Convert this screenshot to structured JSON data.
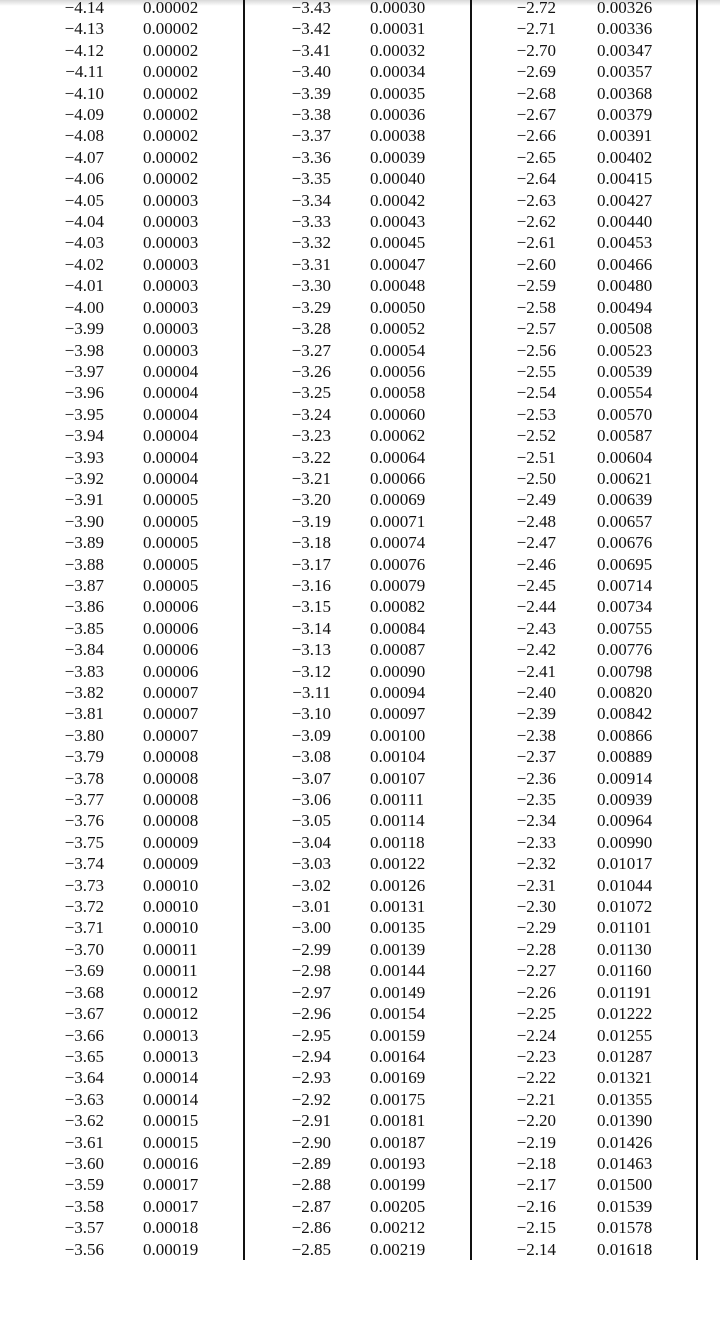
{
  "table": {
    "columns": [
      {
        "z": [
          "−4.14",
          "−4.13",
          "−4.12",
          "−4.11",
          "−4.10",
          "−4.09",
          "−4.08",
          "−4.07",
          "−4.06",
          "−4.05",
          "−4.04",
          "−4.03",
          "−4.02",
          "−4.01",
          "−4.00",
          "−3.99",
          "−3.98",
          "−3.97",
          "−3.96",
          "−3.95",
          "−3.94",
          "−3.93",
          "−3.92",
          "−3.91",
          "−3.90",
          "−3.89",
          "−3.88",
          "−3.87",
          "−3.86",
          "−3.85",
          "−3.84",
          "−3.83",
          "−3.82",
          "−3.81",
          "−3.80",
          "−3.79",
          "−3.78",
          "−3.77",
          "−3.76",
          "−3.75",
          "−3.74",
          "−3.73",
          "−3.72",
          "−3.71",
          "−3.70",
          "−3.69",
          "−3.68",
          "−3.67",
          "−3.66",
          "−3.65",
          "−3.64",
          "−3.63",
          "−3.62",
          "−3.61",
          "−3.60",
          "−3.59",
          "−3.58",
          "−3.57",
          "−3.56"
        ],
        "p": [
          "0.00002",
          "0.00002",
          "0.00002",
          "0.00002",
          "0.00002",
          "0.00002",
          "0.00002",
          "0.00002",
          "0.00002",
          "0.00003",
          "0.00003",
          "0.00003",
          "0.00003",
          "0.00003",
          "0.00003",
          "0.00003",
          "0.00003",
          "0.00004",
          "0.00004",
          "0.00004",
          "0.00004",
          "0.00004",
          "0.00004",
          "0.00005",
          "0.00005",
          "0.00005",
          "0.00005",
          "0.00005",
          "0.00006",
          "0.00006",
          "0.00006",
          "0.00006",
          "0.00007",
          "0.00007",
          "0.00007",
          "0.00008",
          "0.00008",
          "0.00008",
          "0.00008",
          "0.00009",
          "0.00009",
          "0.00010",
          "0.00010",
          "0.00010",
          "0.00011",
          "0.00011",
          "0.00012",
          "0.00012",
          "0.00013",
          "0.00013",
          "0.00014",
          "0.00014",
          "0.00015",
          "0.00015",
          "0.00016",
          "0.00017",
          "0.00017",
          "0.00018",
          "0.00019"
        ]
      },
      {
        "z": [
          "−3.43",
          "−3.42",
          "−3.41",
          "−3.40",
          "−3.39",
          "−3.38",
          "−3.37",
          "−3.36",
          "−3.35",
          "−3.34",
          "−3.33",
          "−3.32",
          "−3.31",
          "−3.30",
          "−3.29",
          "−3.28",
          "−3.27",
          "−3.26",
          "−3.25",
          "−3.24",
          "−3.23",
          "−3.22",
          "−3.21",
          "−3.20",
          "−3.19",
          "−3.18",
          "−3.17",
          "−3.16",
          "−3.15",
          "−3.14",
          "−3.13",
          "−3.12",
          "−3.11",
          "−3.10",
          "−3.09",
          "−3.08",
          "−3.07",
          "−3.06",
          "−3.05",
          "−3.04",
          "−3.03",
          "−3.02",
          "−3.01",
          "−3.00",
          "−2.99",
          "−2.98",
          "−2.97",
          "−2.96",
          "−2.95",
          "−2.94",
          "−2.93",
          "−2.92",
          "−2.91",
          "−2.90",
          "−2.89",
          "−2.88",
          "−2.87",
          "−2.86",
          "−2.85"
        ],
        "p": [
          "0.00030",
          "0.00031",
          "0.00032",
          "0.00034",
          "0.00035",
          "0.00036",
          "0.00038",
          "0.00039",
          "0.00040",
          "0.00042",
          "0.00043",
          "0.00045",
          "0.00047",
          "0.00048",
          "0.00050",
          "0.00052",
          "0.00054",
          "0.00056",
          "0.00058",
          "0.00060",
          "0.00062",
          "0.00064",
          "0.00066",
          "0.00069",
          "0.00071",
          "0.00074",
          "0.00076",
          "0.00079",
          "0.00082",
          "0.00084",
          "0.00087",
          "0.00090",
          "0.00094",
          "0.00097",
          "0.00100",
          "0.00104",
          "0.00107",
          "0.00111",
          "0.00114",
          "0.00118",
          "0.00122",
          "0.00126",
          "0.00131",
          "0.00135",
          "0.00139",
          "0.00144",
          "0.00149",
          "0.00154",
          "0.00159",
          "0.00164",
          "0.00169",
          "0.00175",
          "0.00181",
          "0.00187",
          "0.00193",
          "0.00199",
          "0.00205",
          "0.00212",
          "0.00219"
        ]
      },
      {
        "z": [
          "−2.72",
          "−2.71",
          "−2.70",
          "−2.69",
          "−2.68",
          "−2.67",
          "−2.66",
          "−2.65",
          "−2.64",
          "−2.63",
          "−2.62",
          "−2.61",
          "−2.60",
          "−2.59",
          "−2.58",
          "−2.57",
          "−2.56",
          "−2.55",
          "−2.54",
          "−2.53",
          "−2.52",
          "−2.51",
          "−2.50",
          "−2.49",
          "−2.48",
          "−2.47",
          "−2.46",
          "−2.45",
          "−2.44",
          "−2.43",
          "−2.42",
          "−2.41",
          "−2.40",
          "−2.39",
          "−2.38",
          "−2.37",
          "−2.36",
          "−2.35",
          "−2.34",
          "−2.33",
          "−2.32",
          "−2.31",
          "−2.30",
          "−2.29",
          "−2.28",
          "−2.27",
          "−2.26",
          "−2.25",
          "−2.24",
          "−2.23",
          "−2.22",
          "−2.21",
          "−2.20",
          "−2.19",
          "−2.18",
          "−2.17",
          "−2.16",
          "−2.15",
          "−2.14"
        ],
        "p": [
          "0.00326",
          "0.00336",
          "0.00347",
          "0.00357",
          "0.00368",
          "0.00379",
          "0.00391",
          "0.00402",
          "0.00415",
          "0.00427",
          "0.00440",
          "0.00453",
          "0.00466",
          "0.00480",
          "0.00494",
          "0.00508",
          "0.00523",
          "0.00539",
          "0.00554",
          "0.00570",
          "0.00587",
          "0.00604",
          "0.00621",
          "0.00639",
          "0.00657",
          "0.00676",
          "0.00695",
          "0.00714",
          "0.00734",
          "0.00755",
          "0.00776",
          "0.00798",
          "0.00820",
          "0.00842",
          "0.00866",
          "0.00889",
          "0.00914",
          "0.00939",
          "0.00964",
          "0.00990",
          "0.01017",
          "0.01044",
          "0.01072",
          "0.01101",
          "0.01130",
          "0.01160",
          "0.01191",
          "0.01222",
          "0.01255",
          "0.01287",
          "0.01321",
          "0.01355",
          "0.01390",
          "0.01426",
          "0.01463",
          "0.01500",
          "0.01539",
          "0.01578",
          "0.01618"
        ]
      }
    ]
  }
}
